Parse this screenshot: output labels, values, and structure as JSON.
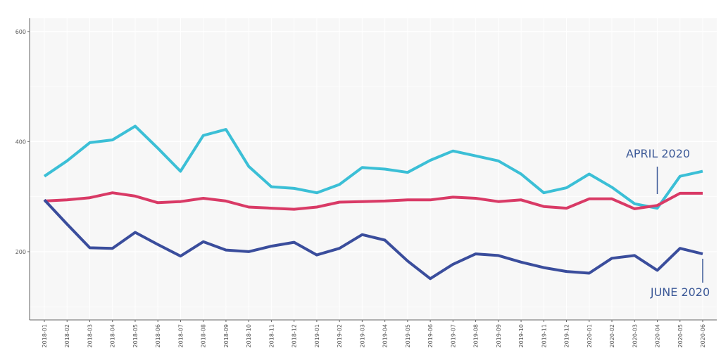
{
  "chart_data": {
    "type": "line",
    "title": "",
    "xlabel": "",
    "ylabel": "",
    "ylim": [
      76,
      624
    ],
    "yticks": [
      200,
      400,
      600
    ],
    "grid": true,
    "x": [
      "2018-01",
      "2018-02",
      "2018-03",
      "2018-04",
      "2018-05",
      "2018-06",
      "2018-07",
      "2018-08",
      "2018-09",
      "2018-10",
      "2018-11",
      "2018-12",
      "2019-01",
      "2019-02",
      "2019-03",
      "2019-04",
      "2019-05",
      "2019-06",
      "2019-07",
      "2019-08",
      "2019-09",
      "2019-10",
      "2019-11",
      "2019-12",
      "2020-01",
      "2020-02",
      "2020-03",
      "2020-04",
      "2020-05",
      "2020-06"
    ],
    "series": [
      {
        "name": "cyan",
        "color": "#3bbfd6",
        "values": [
          337,
          365,
          398,
          403,
          428,
          388,
          346,
          411,
          422,
          355,
          318,
          315,
          307,
          322,
          353,
          350,
          344,
          366,
          383,
          374,
          365,
          341,
          307,
          316,
          341,
          317,
          287,
          279,
          337,
          346
        ]
      },
      {
        "name": "red",
        "color": "#d93a66",
        "values": [
          292,
          294,
          298,
          307,
          301,
          289,
          291,
          297,
          292,
          281,
          279,
          277,
          281,
          290,
          291,
          292,
          294,
          294,
          299,
          297,
          291,
          294,
          282,
          279,
          296,
          296,
          278,
          284,
          306,
          306
        ]
      },
      {
        "name": "blue",
        "color": "#3a4d9c",
        "values": [
          294,
          250,
          207,
          206,
          235,
          213,
          192,
          218,
          203,
          200,
          210,
          217,
          194,
          206,
          231,
          221,
          183,
          151,
          177,
          196,
          193,
          181,
          171,
          164,
          161,
          188,
          193,
          166,
          206,
          196
        ]
      }
    ],
    "annotations": [
      {
        "text": "APRIL 2020",
        "x": "2020-04",
        "position": "above"
      },
      {
        "text": "JUNE 2020",
        "x": "2020-06",
        "position": "below"
      }
    ],
    "annotation_color": "#3d5a98"
  }
}
